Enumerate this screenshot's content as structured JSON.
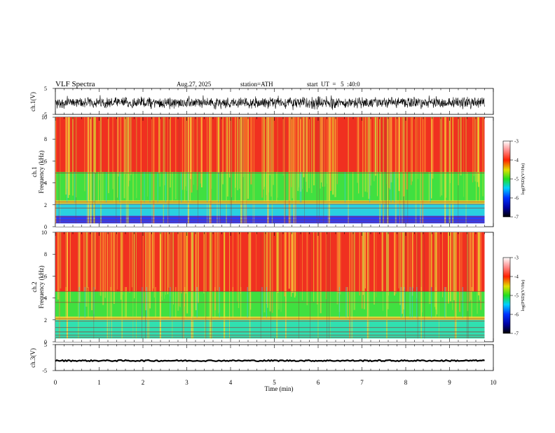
{
  "header": {
    "title": "VLF Spectra",
    "date": "Aug.27, 2025",
    "station": "station=ATH",
    "start": "start  UT  =   5  :40:0"
  },
  "chart_data": [
    {
      "type": "line",
      "panel": "ch1-waveform",
      "ylabel": "ch.1(V)",
      "ylim": [
        -5,
        5
      ],
      "yticks": [
        "5",
        "-5"
      ],
      "xlim": [
        0,
        10
      ],
      "line_color": "#000000",
      "note": "dense noisy waveform centered near -0.5 V, amplitude about +-3 V"
    },
    {
      "type": "heatmap",
      "panel": "ch1-spectrogram",
      "ylabel": "ch.1\nFrequency (kHz)",
      "ylim": [
        0,
        10
      ],
      "yticks": [
        "0",
        "2",
        "4",
        "6",
        "8",
        "10"
      ],
      "xlim": [
        0,
        10
      ],
      "data_end_min": 9.8,
      "colorbar": {
        "label": "log(PSD)(V²/Hz)",
        "range": [
          -7,
          -3
        ],
        "ticks": [
          "-3",
          "-4",
          "-5",
          "-6",
          "-7"
        ]
      },
      "bands": [
        {
          "from": 0,
          "to": 0.3,
          "color": "#ffffff"
        },
        {
          "from": 0.3,
          "to": 1.0,
          "color": "#2a40ff"
        },
        {
          "from": 1.0,
          "to": 2.1,
          "color": "#2ad0e0"
        },
        {
          "from": 2.1,
          "to": 2.4,
          "color": "#e0d030"
        },
        {
          "from": 2.4,
          "to": 5.0,
          "color": "#40e040"
        },
        {
          "from": 5.0,
          "to": 10,
          "color": "#f03020"
        }
      ]
    },
    {
      "type": "heatmap",
      "panel": "ch2-spectrogram",
      "ylabel": "ch.2\nFrequency (kHz)",
      "ylim": [
        0,
        10
      ],
      "yticks": [
        "0",
        "2",
        "4",
        "6",
        "8",
        "10"
      ],
      "xlim": [
        0,
        10
      ],
      "data_end_min": 9.8,
      "colorbar": {
        "label": "log(PSD)(V²/Hz)",
        "range": [
          -7,
          -3
        ],
        "ticks": [
          "-3",
          "-4",
          "-5",
          "-6",
          "-7"
        ]
      },
      "bands": [
        {
          "from": 0,
          "to": 0.3,
          "color": "#ffffff"
        },
        {
          "from": 0.3,
          "to": 2.0,
          "color": "#30e0b0"
        },
        {
          "from": 2.0,
          "to": 2.3,
          "color": "#e0d030"
        },
        {
          "from": 2.3,
          "to": 4.6,
          "color": "#40e040"
        },
        {
          "from": 4.6,
          "to": 10,
          "color": "#f03020"
        }
      ]
    },
    {
      "type": "line",
      "panel": "ch3-waveform",
      "ylabel": "ch.3(V)",
      "ylim": [
        -5,
        5
      ],
      "yticks": [
        "5",
        "-5"
      ],
      "xlim": [
        0,
        10
      ],
      "xlabel": "Time (min)",
      "xticks": [
        "0",
        "1",
        "2",
        "3",
        "4",
        "5",
        "6",
        "7",
        "8",
        "9",
        "10"
      ],
      "line_color": "#000000",
      "note": "nearly flat thick line at about -1.2 V"
    }
  ]
}
